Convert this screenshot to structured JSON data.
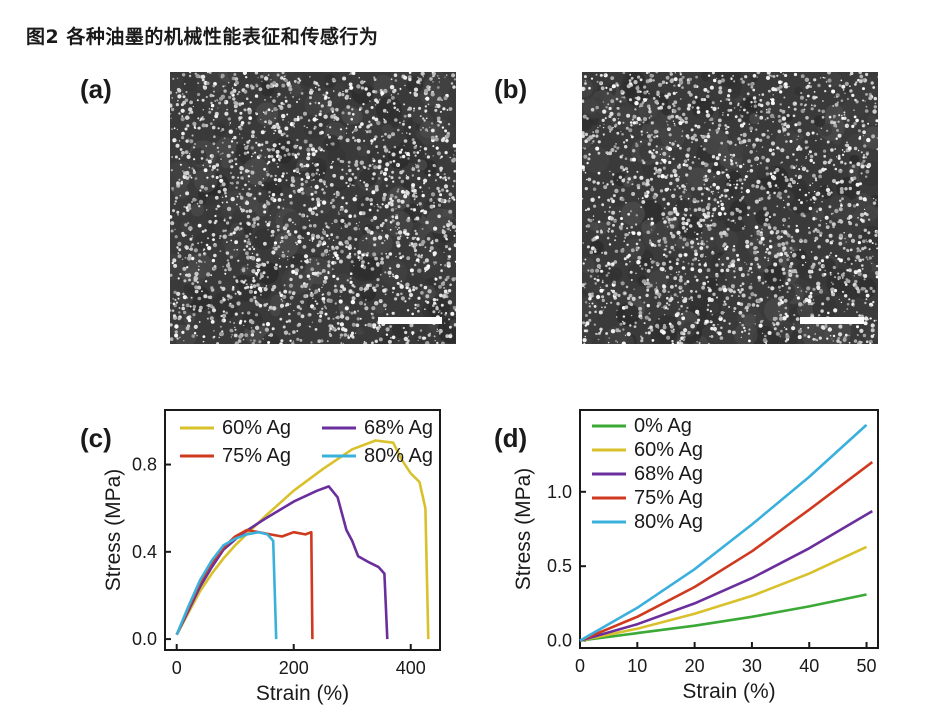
{
  "caption": "图2 各种油墨的机械性能表征和传感行为",
  "panels": {
    "a": "(a)",
    "b": "(b)",
    "c": "(c)",
    "d": "(d)"
  },
  "chart_data": [
    {
      "id": "c",
      "type": "line",
      "xlabel": "Strain (%)",
      "ylabel": "Stress (MPa)",
      "xlim": [
        -20,
        450
      ],
      "ylim": [
        -0.05,
        1.05
      ],
      "xticks": [
        0,
        200,
        400
      ],
      "yticks": [
        0.0,
        0.4,
        0.8
      ],
      "ytick_labels": [
        "0.0",
        "0.4",
        "0.8"
      ],
      "legend_placement": "top",
      "series": [
        {
          "name": "60% Ag",
          "color": "#d9c12b",
          "points": [
            [
              0,
              0.02
            ],
            [
              20,
              0.12
            ],
            [
              40,
              0.22
            ],
            [
              60,
              0.3
            ],
            [
              80,
              0.37
            ],
            [
              100,
              0.43
            ],
            [
              150,
              0.56
            ],
            [
              200,
              0.68
            ],
            [
              250,
              0.78
            ],
            [
              300,
              0.87
            ],
            [
              340,
              0.91
            ],
            [
              370,
              0.9
            ],
            [
              385,
              0.82
            ],
            [
              400,
              0.76
            ],
            [
              415,
              0.72
            ],
            [
              425,
              0.6
            ],
            [
              430,
              0.0
            ]
          ]
        },
        {
          "name": "68% Ag",
          "color": "#6a2f9c",
          "points": [
            [
              0,
              0.02
            ],
            [
              20,
              0.13
            ],
            [
              40,
              0.24
            ],
            [
              60,
              0.33
            ],
            [
              80,
              0.41
            ],
            [
              110,
              0.48
            ],
            [
              150,
              0.55
            ],
            [
              200,
              0.63
            ],
            [
              240,
              0.68
            ],
            [
              260,
              0.7
            ],
            [
              275,
              0.65
            ],
            [
              290,
              0.5
            ],
            [
              300,
              0.45
            ],
            [
              310,
              0.38
            ],
            [
              330,
              0.35
            ],
            [
              345,
              0.33
            ],
            [
              355,
              0.3
            ],
            [
              360,
              0.0
            ]
          ]
        },
        {
          "name": "75% Ag",
          "color": "#cf3a1f",
          "points": [
            [
              0,
              0.02
            ],
            [
              20,
              0.14
            ],
            [
              40,
              0.26
            ],
            [
              60,
              0.35
            ],
            [
              80,
              0.42
            ],
            [
              100,
              0.47
            ],
            [
              120,
              0.5
            ],
            [
              140,
              0.49
            ],
            [
              160,
              0.48
            ],
            [
              180,
              0.47
            ],
            [
              200,
              0.49
            ],
            [
              220,
              0.48
            ],
            [
              230,
              0.49
            ],
            [
              232,
              0.0
            ]
          ]
        },
        {
          "name": "80% Ag",
          "color": "#3ab0dc",
          "points": [
            [
              0,
              0.02
            ],
            [
              20,
              0.15
            ],
            [
              40,
              0.27
            ],
            [
              60,
              0.36
            ],
            [
              80,
              0.43
            ],
            [
              100,
              0.46
            ],
            [
              120,
              0.48
            ],
            [
              140,
              0.49
            ],
            [
              155,
              0.48
            ],
            [
              165,
              0.45
            ],
            [
              170,
              0.0
            ]
          ]
        }
      ]
    },
    {
      "id": "d",
      "type": "line",
      "xlabel": "Strain (%)",
      "ylabel": "Stress (MPa)",
      "xlim": [
        0,
        52
      ],
      "ylim": [
        -0.05,
        1.55
      ],
      "xticks": [
        0,
        10,
        20,
        30,
        40,
        50
      ],
      "yticks": [
        0.0,
        0.5,
        1.0
      ],
      "ytick_labels": [
        "0.0",
        "0.5",
        "1.0"
      ],
      "legend_placement": "top-left",
      "series": [
        {
          "name": "0% Ag",
          "color": "#3aa935",
          "points": [
            [
              0,
              0
            ],
            [
              10,
              0.05
            ],
            [
              20,
              0.1
            ],
            [
              30,
              0.16
            ],
            [
              40,
              0.23
            ],
            [
              50,
              0.31
            ]
          ]
        },
        {
          "name": "60% Ag",
          "color": "#d9c12b",
          "points": [
            [
              0,
              0
            ],
            [
              10,
              0.08
            ],
            [
              20,
              0.18
            ],
            [
              30,
              0.3
            ],
            [
              40,
              0.45
            ],
            [
              50,
              0.63
            ]
          ]
        },
        {
          "name": "68% Ag",
          "color": "#6a2f9c",
          "points": [
            [
              0,
              0
            ],
            [
              10,
              0.11
            ],
            [
              20,
              0.25
            ],
            [
              30,
              0.42
            ],
            [
              40,
              0.62
            ],
            [
              51,
              0.87
            ]
          ]
        },
        {
          "name": "75% Ag",
          "color": "#cf3a1f",
          "points": [
            [
              0,
              0
            ],
            [
              10,
              0.16
            ],
            [
              20,
              0.36
            ],
            [
              30,
              0.6
            ],
            [
              40,
              0.88
            ],
            [
              51,
              1.2
            ]
          ]
        },
        {
          "name": "80% Ag",
          "color": "#3ab0dc",
          "points": [
            [
              0,
              0
            ],
            [
              10,
              0.22
            ],
            [
              20,
              0.48
            ],
            [
              30,
              0.78
            ],
            [
              40,
              1.1
            ],
            [
              50,
              1.45
            ]
          ]
        }
      ]
    }
  ]
}
